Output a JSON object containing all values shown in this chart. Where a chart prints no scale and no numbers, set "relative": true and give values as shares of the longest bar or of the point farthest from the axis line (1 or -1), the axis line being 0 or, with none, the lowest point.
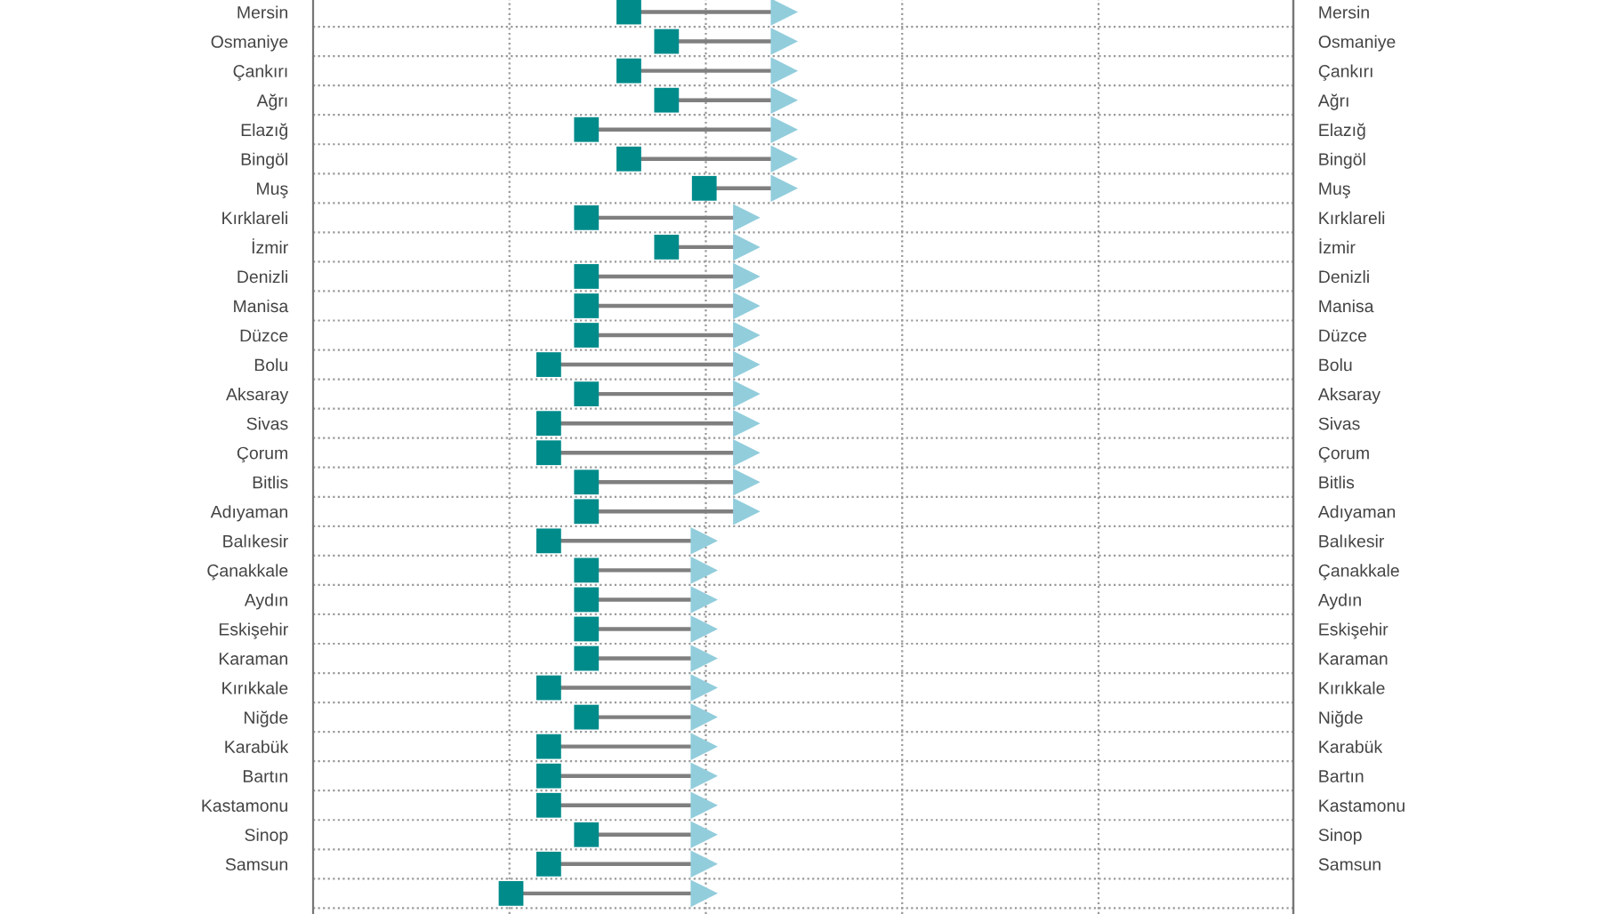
{
  "chart_data": {
    "type": "scatter",
    "orientation": "horizontal",
    "relative": true,
    "categories": [
      "Mersin",
      "Osmaniye",
      "Çankırı",
      "Ağrı",
      "Elazığ",
      "Bingöl",
      "Muş",
      "Kırklareli",
      "İzmir",
      "Denizli",
      "Manisa",
      "Düzce",
      "Bolu",
      "Aksaray",
      "Sivas",
      "Çorum",
      "Bitlis",
      "Adıyaman",
      "Balıkesir",
      "Çanakkale",
      "Aydın",
      "Eskişehir",
      "Karaman",
      "Kırıkkale",
      "Niğde",
      "Karabük",
      "Bartın",
      "Kastamonu",
      "Sinop",
      "Samsun",
      null
    ],
    "y2_categories": [
      "Mersin",
      "Osmaniye",
      "Çankırı",
      "Ağrı",
      "Elazığ",
      "Bingöl",
      "Muş",
      "Kırklareli",
      "İzmir",
      "Denizli",
      "Manisa",
      "Düzce",
      "Bolu",
      "Aksaray",
      "Sivas",
      "Çorum",
      "Bitlis",
      "Adıyaman",
      "Balıkesir",
      "Çanakkale",
      "Aydın",
      "Eskişehir",
      "Karaman",
      "Kırıkkale",
      "Niğde",
      "Karabük",
      "Bartın",
      "Kastamonu",
      "Sinop",
      "Samsun",
      null
    ],
    "series": [
      {
        "color": "#008b8b",
        "marker": "square",
        "values": [
          0.67,
          0.75,
          0.67,
          0.75,
          0.58,
          0.67,
          0.83,
          0.58,
          0.75,
          0.58,
          0.58,
          0.58,
          0.5,
          0.58,
          0.5,
          0.5,
          0.58,
          0.58,
          0.5,
          0.58,
          0.58,
          0.58,
          0.58,
          0.5,
          0.58,
          0.5,
          0.5,
          0.5,
          0.58,
          0.5,
          0.42
        ]
      },
      {
        "color": "#92cddc",
        "marker": "triangle",
        "values": [
          1,
          1,
          1,
          1,
          1,
          1,
          1,
          0.92,
          0.92,
          0.92,
          0.92,
          0.92,
          0.92,
          0.92,
          0.92,
          0.92,
          0.92,
          0.92,
          0.83,
          0.83,
          0.83,
          0.83,
          0.83,
          0.83,
          0.83,
          0.83,
          0.83,
          0.83,
          0.83,
          0.83,
          0.83
        ]
      }
    ],
    "grid": true,
    "legend": false
  }
}
